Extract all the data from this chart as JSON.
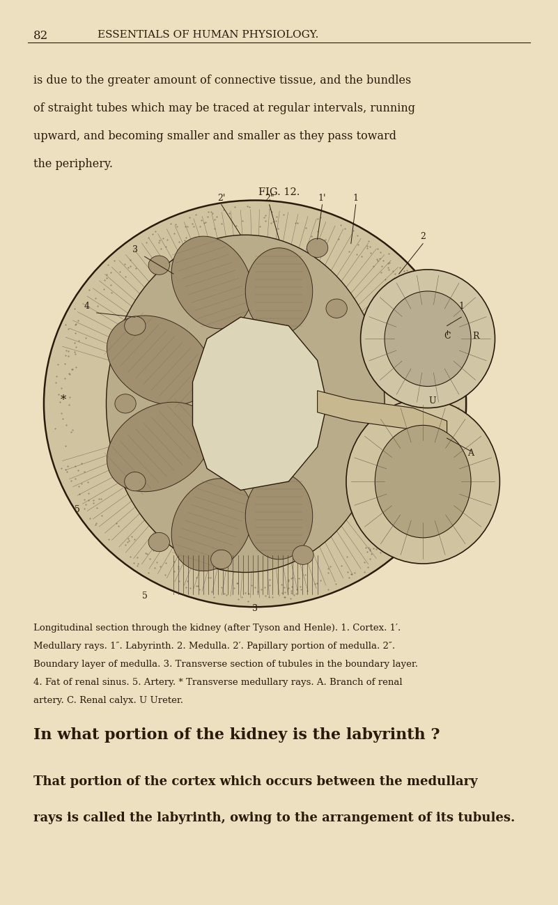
{
  "bg_color": "#EDE0C0",
  "page_num": "82",
  "header": "ESSENTIALS OF HUMAN PHYSIOLOGY.",
  "header_fontsize": 11,
  "page_num_fontsize": 12,
  "body_text_fontsize": 11.5,
  "caption_fontsize": 9.5,
  "bold_question_fontsize": 16,
  "bold_answer_fontsize": 13,
  "text_color": "#2a1a0a",
  "body_lines": [
    "is due to the greater amount of connective tissue, and the bundles",
    "of straight tubes which may be traced at regular intervals, running",
    "upward, and becoming smaller and smaller as they pass toward",
    "the periphery."
  ],
  "fig_label": "FIG. 12.",
  "caption_lines": [
    "Longitudinal section through the kidney (after Tyson and Henle). 1. Cortex. 1′.",
    "Medullary rays. 1″. Labyrinth. 2. Medulla. 2′. Papillary portion of medulla. 2″.",
    "Boundary layer of medulla. 3. Transverse section of tubules in the boundary layer.",
    "4. Fat of renal sinus. 5. Artery. * Transverse medullary rays. A. Branch of renal",
    "artery. C. Renal calyx. U Ureter."
  ],
  "question_bold": "In what portion of the kidney is the labyrinth ?",
  "answer_line1": "That portion of the cortex which occurs between the medullary",
  "answer_line2": "rays is called the labyrinth, owing to the arrangement of its tubules."
}
